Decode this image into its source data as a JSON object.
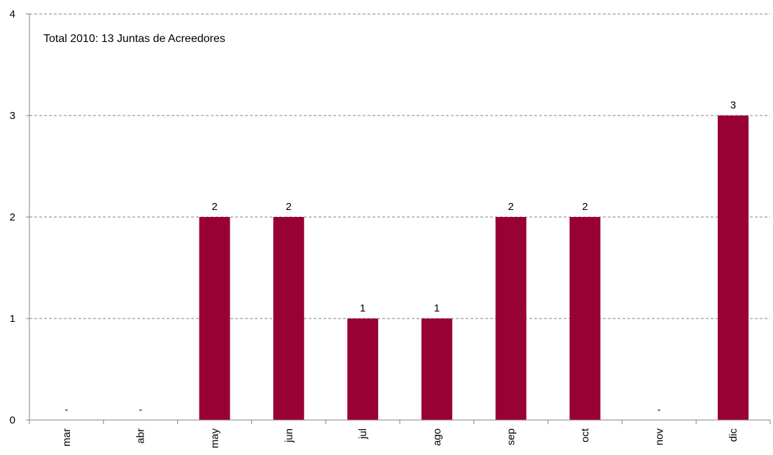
{
  "chart_data": {
    "type": "bar",
    "title": "",
    "annotation": "Total 2010:  13 Juntas de Acreedores",
    "categories": [
      "mar",
      "abr",
      "may",
      "jun",
      "jul",
      "ago",
      "sep",
      "oct",
      "nov",
      "dic"
    ],
    "values": [
      0,
      0,
      2,
      2,
      1,
      1,
      2,
      2,
      0,
      3
    ],
    "data_labels": [
      "-",
      "-",
      "2",
      "2",
      "1",
      "1",
      "2",
      "2",
      "-",
      "3"
    ],
    "y_ticks": [
      "0",
      "1",
      "2",
      "3",
      "4"
    ],
    "ylim": [
      0,
      4
    ],
    "xlabel": "",
    "ylabel": "",
    "grid": true,
    "legend": "none",
    "bar_color": "#990033"
  }
}
